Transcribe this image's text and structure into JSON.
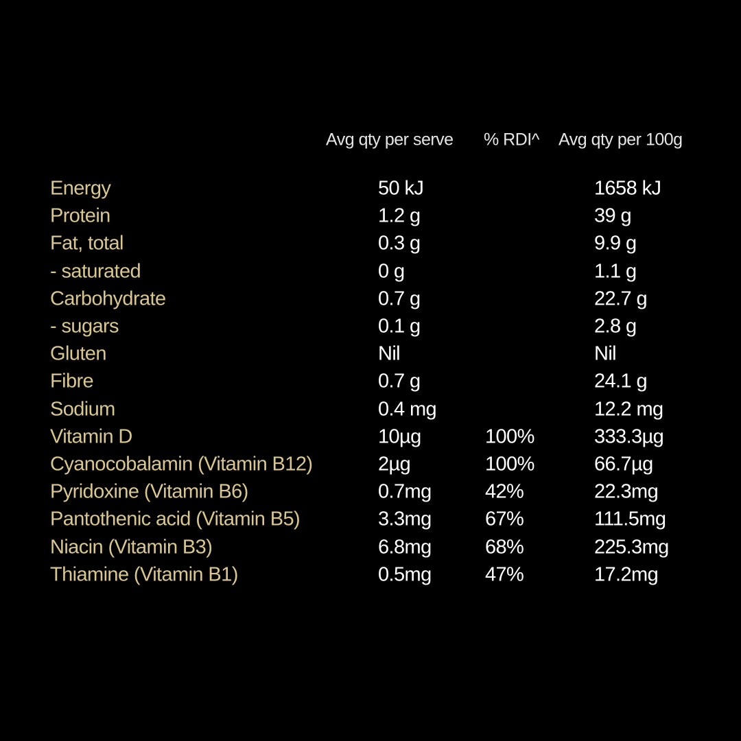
{
  "table": {
    "header": [
      "Avg qty per serve",
      "% RDI^",
      "Avg qty per 100g"
    ],
    "rows": [
      {
        "name": "Energy",
        "serve": "50 kJ",
        "per100g": "1658 kJ"
      },
      {
        "name": "Protein",
        "serve": "1.2 g",
        "per100g": "39 g"
      },
      {
        "name": "Fat, total",
        "serve": "0.3 g",
        "per100g": "9.9 g"
      },
      {
        "name": "- saturated",
        "serve": "0 g",
        "per100g": "1.1 g"
      },
      {
        "name": "Carbohydrate",
        "serve": "0.7 g",
        "per100g": "22.7 g"
      },
      {
        "name": "- sugars",
        "serve": "0.1 g",
        "per100g": "2.8 g"
      },
      {
        "name": "Gluten",
        "serve": "Nil",
        "per100g": "Nil"
      },
      {
        "name": "Fibre",
        "serve": "0.7 g",
        "per100g": "24.1 g"
      },
      {
        "name": "Sodium",
        "serve": "0.4 mg",
        "per100g": "12.2 mg"
      },
      {
        "name": "Vitamin D",
        "serve": "10µg",
        "rdi": "100%",
        "per100g": "333.3µg"
      },
      {
        "name": "Cyanocobalamin (Vitamin B12)",
        "serve": "2µg",
        "rdi": "100%",
        "per100g": "66.7µg"
      },
      {
        "name": "Pyridoxine (Vitamin B6)",
        "serve": "0.7mg",
        "rdi": "42%",
        "per100g": "22.3mg"
      },
      {
        "name": "Pantothenic acid (Vitamin B5)",
        "serve": "3.3mg",
        "rdi": "67%",
        "per100g": "111.5mg"
      },
      {
        "name": "Niacin (Vitamin B3)",
        "serve": "6.8mg",
        "rdi": "68%",
        "per100g": "225.3mg"
      },
      {
        "name": "Thiamine (Vitamin B1)",
        "serve": "0.5mg",
        "rdi": "47%",
        "per100g": "17.2mg"
      }
    ]
  }
}
